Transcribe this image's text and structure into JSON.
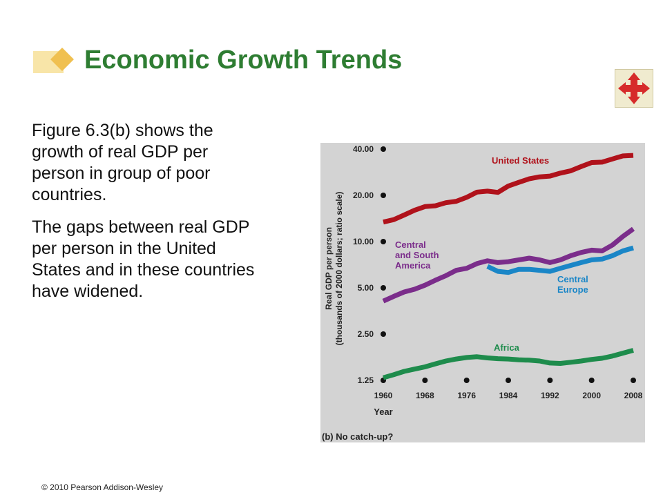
{
  "slide": {
    "title": "Economic Growth Trends",
    "paragraphs": [
      "Figure 6.3(b) shows the growth of real GDP per person in group of poor countries.",
      "The gaps between real GDP per person in the United States and in these countries have widened."
    ],
    "footer": "© 2010 Pearson Addison-Wesley",
    "nav_icon": "four-way-arrows-icon",
    "accent_color": "#2e7d32"
  },
  "chart_data": {
    "type": "line",
    "caption": "(b) No catch-up?",
    "xlabel": "Year",
    "ylabel_line1": "Real GDP per person",
    "ylabel_line2": "(thousands of 2000 dollars; ratio scale)",
    "y_scale": "log",
    "ylim": [
      1.25,
      40
    ],
    "xlim": [
      1960,
      2008
    ],
    "x_ticks": [
      1960,
      1968,
      1976,
      1984,
      1992,
      2000,
      2008
    ],
    "y_ticks": [
      {
        "value": 1.25,
        "label": "1.25"
      },
      {
        "value": 2.5,
        "label": "2.50"
      },
      {
        "value": 5,
        "label": "5.00"
      },
      {
        "value": 10,
        "label": "10.00"
      },
      {
        "value": 20,
        "label": "20.00"
      },
      {
        "value": 40,
        "label": "40.00"
      }
    ],
    "series": [
      {
        "name": "United States",
        "color": "#b0121b",
        "label_lines": [
          "United States"
        ],
        "points": [
          [
            1960,
            13.4
          ],
          [
            1962,
            13.9
          ],
          [
            1964,
            14.9
          ],
          [
            1966,
            16.0
          ],
          [
            1968,
            16.9
          ],
          [
            1970,
            17.1
          ],
          [
            1972,
            17.9
          ],
          [
            1974,
            18.3
          ],
          [
            1976,
            19.4
          ],
          [
            1978,
            21.0
          ],
          [
            1980,
            21.3
          ],
          [
            1982,
            20.9
          ],
          [
            1984,
            23.0
          ],
          [
            1986,
            24.3
          ],
          [
            1988,
            25.6
          ],
          [
            1990,
            26.4
          ],
          [
            1992,
            26.7
          ],
          [
            1994,
            27.9
          ],
          [
            1996,
            28.9
          ],
          [
            1998,
            30.8
          ],
          [
            2000,
            32.7
          ],
          [
            2002,
            32.9
          ],
          [
            2004,
            34.5
          ],
          [
            2006,
            36.1
          ],
          [
            2008,
            36.4
          ]
        ]
      },
      {
        "name": "Central and South America",
        "color": "#7b2d8b",
        "label_lines": [
          "Central",
          "and South",
          "America"
        ],
        "points": [
          [
            1960,
            4.1
          ],
          [
            1962,
            4.4
          ],
          [
            1964,
            4.7
          ],
          [
            1966,
            4.9
          ],
          [
            1968,
            5.2
          ],
          [
            1970,
            5.6
          ],
          [
            1972,
            6.0
          ],
          [
            1974,
            6.5
          ],
          [
            1976,
            6.7
          ],
          [
            1978,
            7.2
          ],
          [
            1980,
            7.5
          ],
          [
            1982,
            7.3
          ],
          [
            1984,
            7.4
          ],
          [
            1986,
            7.6
          ],
          [
            1988,
            7.8
          ],
          [
            1990,
            7.6
          ],
          [
            1992,
            7.3
          ],
          [
            1994,
            7.6
          ],
          [
            1996,
            8.1
          ],
          [
            1998,
            8.5
          ],
          [
            2000,
            8.8
          ],
          [
            2002,
            8.7
          ],
          [
            2004,
            9.5
          ],
          [
            2006,
            10.8
          ],
          [
            2008,
            12.1
          ]
        ]
      },
      {
        "name": "Central Europe",
        "color": "#1a86c7",
        "label_lines": [
          "Central",
          "Europe"
        ],
        "points": [
          [
            1980,
            6.9
          ],
          [
            1982,
            6.4
          ],
          [
            1984,
            6.3
          ],
          [
            1986,
            6.6
          ],
          [
            1988,
            6.6
          ],
          [
            1990,
            6.5
          ],
          [
            1992,
            6.4
          ],
          [
            1994,
            6.7
          ],
          [
            1996,
            7.0
          ],
          [
            1998,
            7.3
          ],
          [
            2000,
            7.6
          ],
          [
            2002,
            7.7
          ],
          [
            2004,
            8.1
          ],
          [
            2006,
            8.7
          ],
          [
            2008,
            9.1
          ]
        ]
      },
      {
        "name": "Africa",
        "color": "#1e8c4c",
        "label_lines": [
          "Africa"
        ],
        "points": [
          [
            1960,
            1.3
          ],
          [
            1962,
            1.36
          ],
          [
            1964,
            1.43
          ],
          [
            1966,
            1.48
          ],
          [
            1968,
            1.53
          ],
          [
            1970,
            1.6
          ],
          [
            1972,
            1.67
          ],
          [
            1974,
            1.72
          ],
          [
            1976,
            1.76
          ],
          [
            1978,
            1.78
          ],
          [
            1980,
            1.75
          ],
          [
            1982,
            1.73
          ],
          [
            1984,
            1.72
          ],
          [
            1986,
            1.7
          ],
          [
            1988,
            1.69
          ],
          [
            1990,
            1.67
          ],
          [
            1992,
            1.62
          ],
          [
            1994,
            1.61
          ],
          [
            1996,
            1.64
          ],
          [
            1998,
            1.67
          ],
          [
            2000,
            1.71
          ],
          [
            2002,
            1.74
          ],
          [
            2004,
            1.8
          ],
          [
            2006,
            1.88
          ],
          [
            2008,
            1.96
          ]
        ]
      }
    ]
  }
}
